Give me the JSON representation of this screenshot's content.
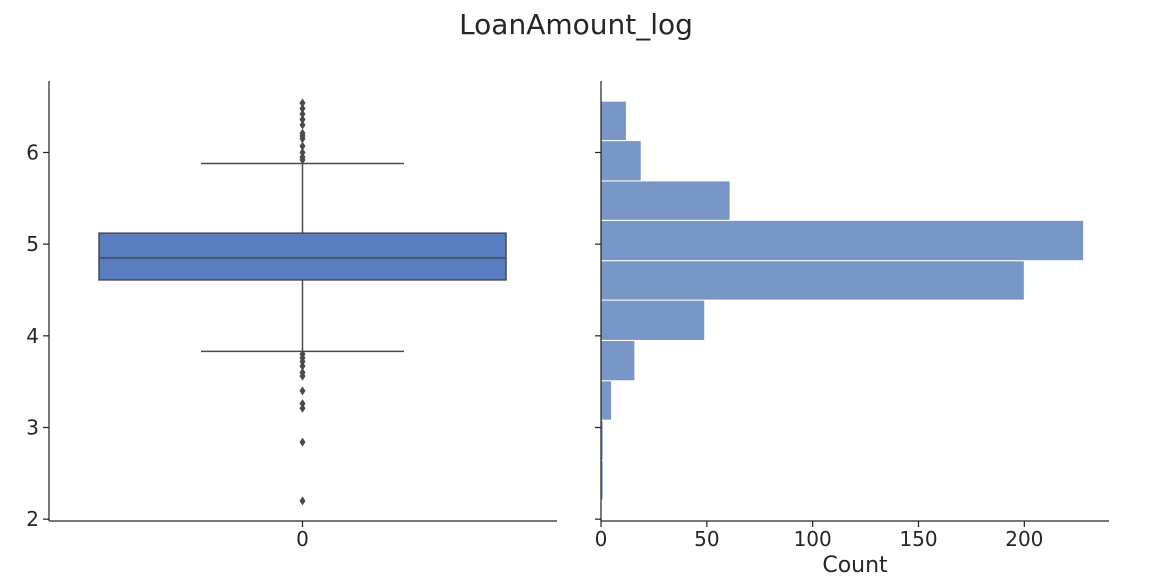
{
  "chart_data": [
    {
      "type": "box",
      "title": "LoanAmount_log",
      "xlabel": "",
      "ylabel": "",
      "categories": [
        "0"
      ],
      "ylim": [
        1.98,
        6.78
      ],
      "yticks": [
        2,
        3,
        4,
        5,
        6
      ],
      "box": {
        "q1": 4.61,
        "median": 4.85,
        "q3": 5.12,
        "whisker_low": 3.83,
        "whisker_high": 5.88,
        "color": "#5a7dc1"
      },
      "outliers": [
        6.54,
        6.48,
        6.42,
        6.36,
        6.3,
        6.21,
        6.18,
        6.15,
        6.07,
        6.0,
        5.95,
        5.92,
        3.8,
        3.76,
        3.72,
        3.67,
        3.6,
        3.56,
        3.4,
        3.26,
        3.21,
        2.84,
        2.2
      ],
      "grid": false
    },
    {
      "type": "bar",
      "orientation": "horizontal",
      "xlabel": "Count",
      "ylabel": "",
      "xlim": [
        0,
        240
      ],
      "xticks": [
        0,
        50,
        100,
        150,
        200
      ],
      "bins": [
        {
          "y0": 2.21,
          "y1": 2.64,
          "count": 1
        },
        {
          "y0": 2.64,
          "y1": 3.08,
          "count": 1
        },
        {
          "y0": 3.08,
          "y1": 3.51,
          "count": 5
        },
        {
          "y0": 3.51,
          "y1": 3.95,
          "count": 16
        },
        {
          "y0": 3.95,
          "y1": 4.39,
          "count": 49
        },
        {
          "y0": 4.39,
          "y1": 4.82,
          "count": 200
        },
        {
          "y0": 4.82,
          "y1": 5.26,
          "count": 228
        },
        {
          "y0": 5.26,
          "y1": 5.69,
          "count": 61
        },
        {
          "y0": 5.69,
          "y1": 6.13,
          "count": 19
        },
        {
          "y0": 6.13,
          "y1": 6.56,
          "count": 12
        }
      ],
      "color": "#7896c6",
      "grid": false
    }
  ]
}
